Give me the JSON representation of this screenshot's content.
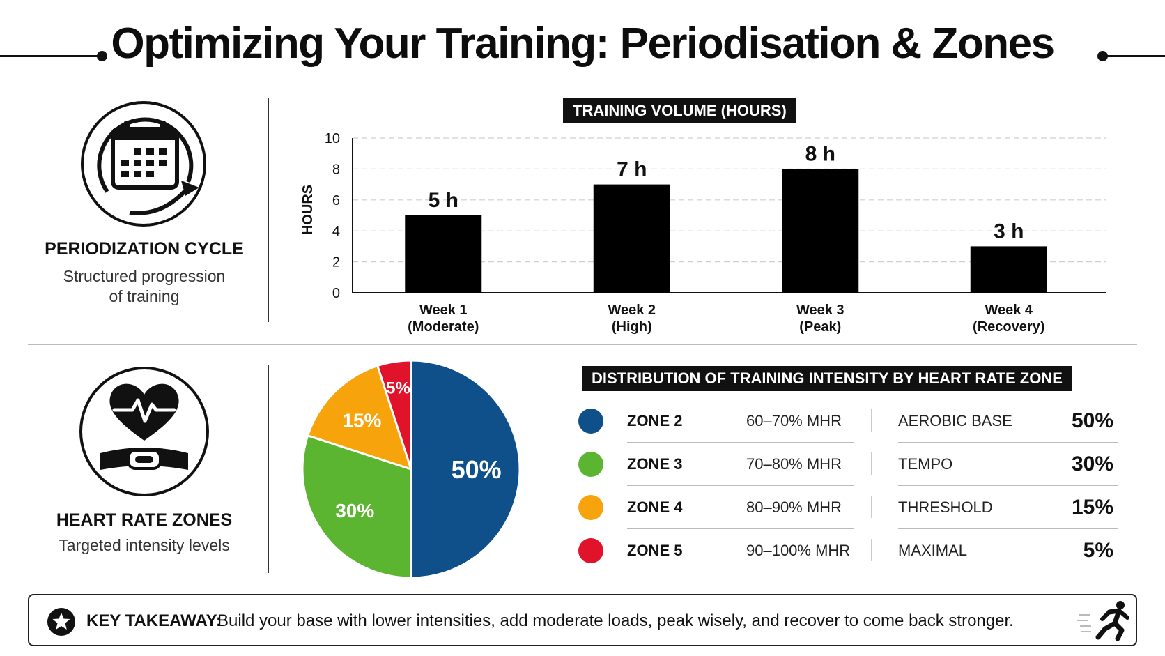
{
  "header": {
    "title": "Optimizing Your Training: Periodisation & Zones"
  },
  "periodization": {
    "icon": "calendar-cycle-icon",
    "title": "PERIODIZATION CYCLE",
    "subtitle_line1": "Structured progression",
    "subtitle_line2": "of training"
  },
  "heart_rate": {
    "icon": "heart-monitor-icon",
    "title": "HEART RATE ZONES",
    "subtitle": "Targeted intensity levels"
  },
  "chart_data": [
    {
      "type": "bar",
      "title": "TRAINING VOLUME (HOURS)",
      "ylabel": "HOURS",
      "xlabel": "",
      "ylim": [
        0,
        10
      ],
      "yticks": [
        0,
        2,
        4,
        6,
        8,
        10
      ],
      "categories": [
        {
          "line1": "Week 1",
          "line2": "(Moderate)"
        },
        {
          "line1": "Week 2",
          "line2": "(High)"
        },
        {
          "line1": "Week 3",
          "line2": "(Peak)"
        },
        {
          "line1": "Week 4",
          "line2": "(Recovery)"
        }
      ],
      "values": [
        5,
        7,
        8,
        3
      ],
      "data_labels": [
        "5 h",
        "7 h",
        "8 h",
        "3 h"
      ],
      "grid": true,
      "bar_color": "#000000"
    },
    {
      "type": "pie",
      "title": "DISTRIBUTION OF TRAINING INTENSITY BY HEART RATE ZONE",
      "slices": [
        {
          "zone": "ZONE 2",
          "range": "60–70% MHR",
          "name": "AEROBIC BASE",
          "value": 50,
          "label": "50%",
          "color": "#0f4f8a"
        },
        {
          "zone": "ZONE 3",
          "range": "70–80% MHR",
          "name": "TEMPO",
          "value": 30,
          "label": "30%",
          "color": "#5bb531"
        },
        {
          "zone": "ZONE 4",
          "range": "80–90% MHR",
          "name": "THRESHOLD",
          "value": 15,
          "label": "15%",
          "color": "#f7a30c"
        },
        {
          "zone": "ZONE 5",
          "range": "90–100% MHR",
          "name": "MAXIMAL",
          "value": 5,
          "label": "5%",
          "color": "#e0132a"
        }
      ],
      "legend": "right"
    }
  ],
  "takeaway": {
    "icon": "star-icon",
    "label": "KEY TAKEAWAY:",
    "text": "Build your base with lower intensities, add moderate loads, peak wisely, and recover to come back stronger.",
    "decoration": "runner-icon"
  }
}
